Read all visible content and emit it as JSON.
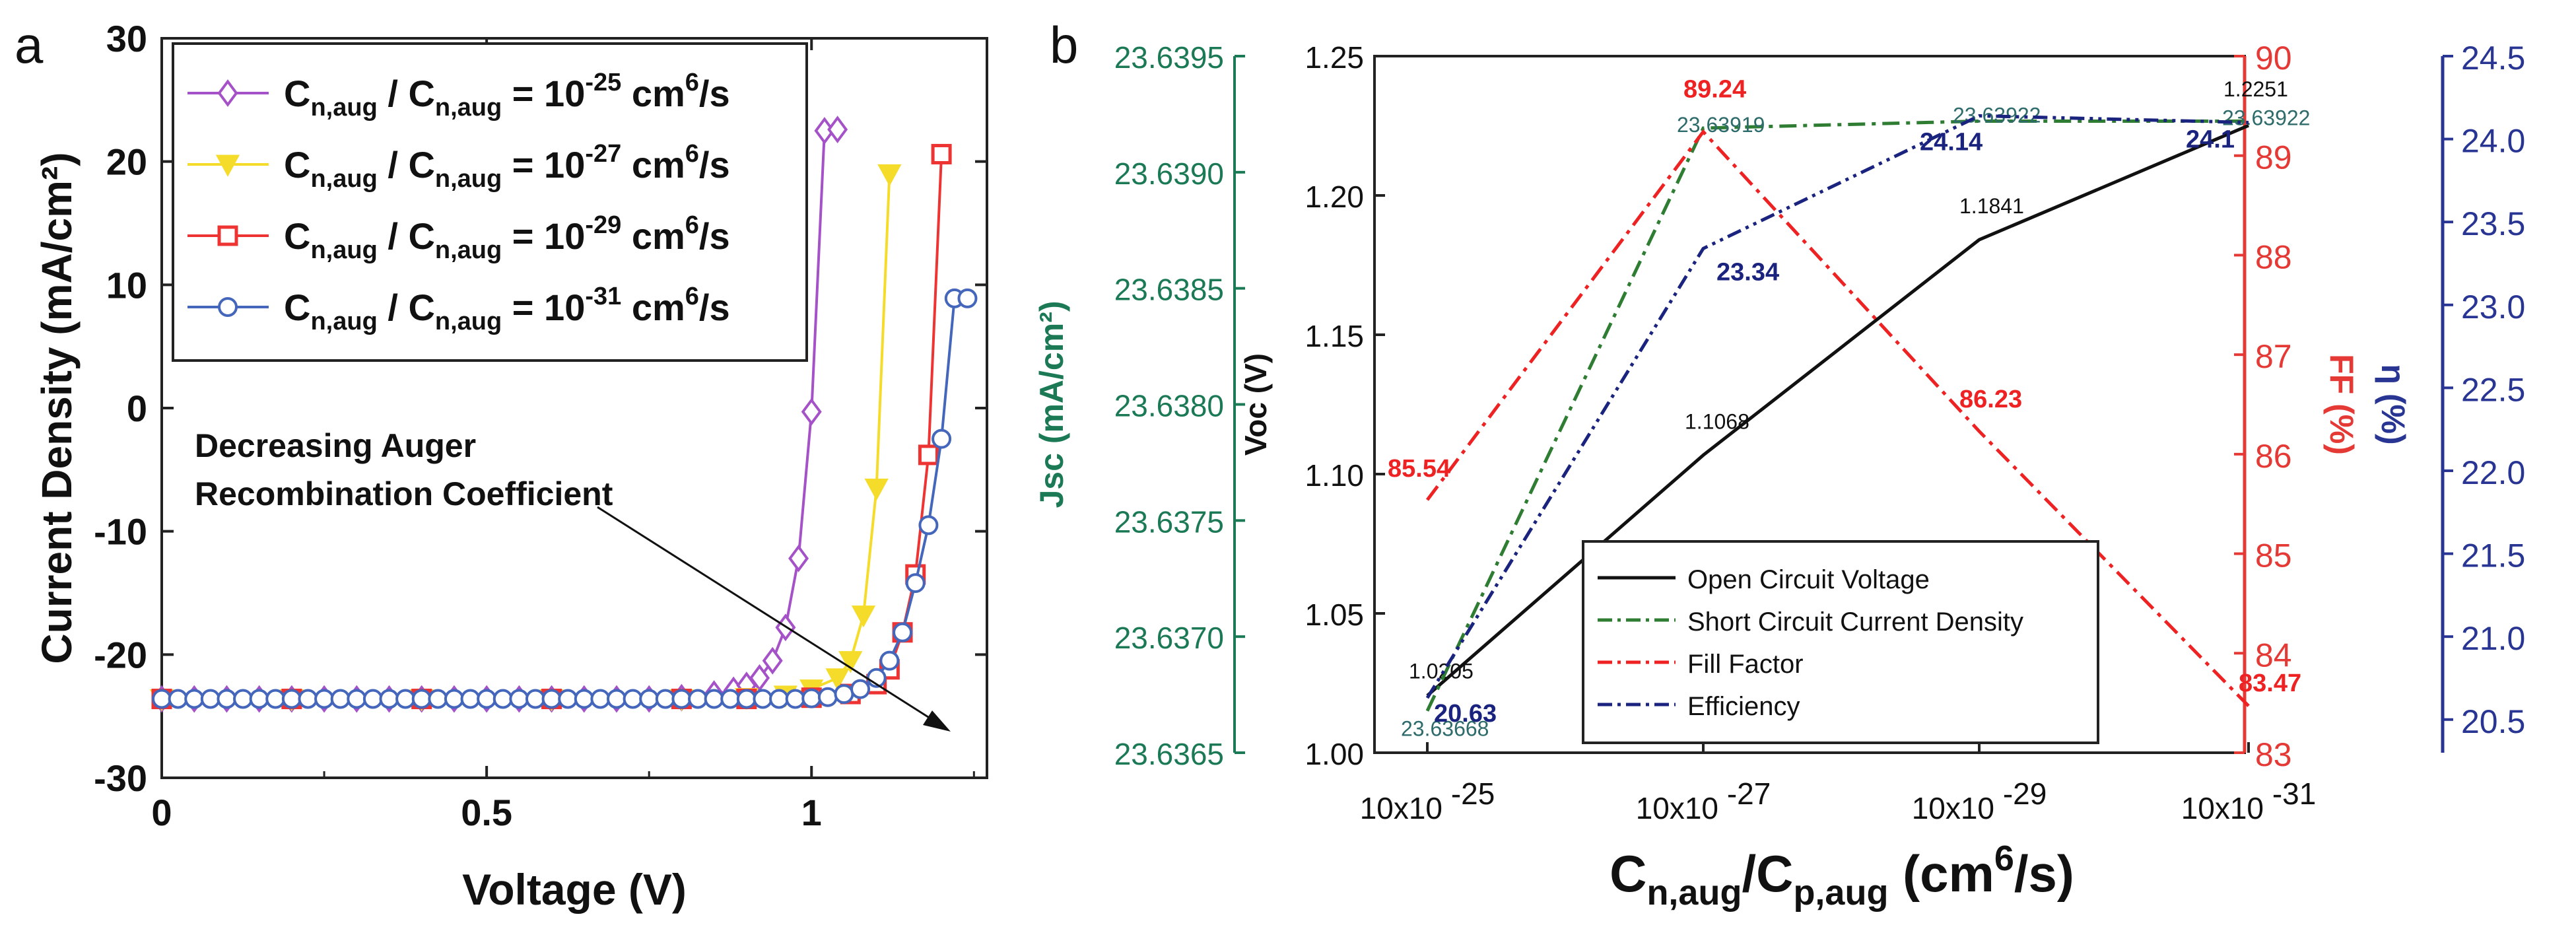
{
  "panel_labels": {
    "a": "a",
    "b": "b"
  },
  "colors": {
    "purple": "#a552c8",
    "yellow": "#f5dc2a",
    "red": "#ee3333",
    "blue": "#4466bb",
    "black": "#111111",
    "green": "#2e7d32",
    "red_dd": "#ee2222",
    "blue_dd": "#1a237e",
    "jsc_axis": "#1b7a55",
    "ff_axis": "#e53935",
    "eta_axis": "#283593"
  },
  "chart_data": [
    {
      "type": "line",
      "xlabel": "Voltage (V)",
      "ylabel": "Current Density (mA/cm²)",
      "xlim": [
        0,
        1.27
      ],
      "ylim": [
        -30,
        30
      ],
      "xticks": [
        0,
        0.5,
        1
      ],
      "xtick_labels": [
        "0",
        "0.5",
        "1"
      ],
      "yticks": [
        -30,
        -20,
        -10,
        0,
        10,
        20,
        30
      ],
      "ytick_labels": [
        "-30",
        "-20",
        "-10",
        "0",
        "10",
        "20",
        "30"
      ],
      "legend_position": "top-right",
      "legend_prefix": "C",
      "legend_sub": "n,aug",
      "legend_mid": " / C",
      "legend_unit": " cm",
      "legend_unit_sup": "6",
      "legend_tail": "/s",
      "legend_eq": " = 10",
      "annotation": {
        "line1": "Decreasing Auger",
        "line2": "Recombination Coefficient"
      },
      "series": [
        {
          "name": "Cn,aug / Cn,aug = 10^-25 cm^6/s",
          "exp": "-25",
          "color": "#a552c8",
          "marker": "diamond",
          "x": [
            0,
            0.05,
            0.1,
            0.15,
            0.2,
            0.25,
            0.3,
            0.35,
            0.4,
            0.45,
            0.5,
            0.55,
            0.6,
            0.65,
            0.7,
            0.75,
            0.8,
            0.85,
            0.88,
            0.9,
            0.92,
            0.94,
            0.96,
            0.98,
            1.0,
            1.02,
            1.04
          ],
          "y": [
            -23.6,
            -23.6,
            -23.6,
            -23.6,
            -23.6,
            -23.6,
            -23.6,
            -23.6,
            -23.6,
            -23.6,
            -23.6,
            -23.6,
            -23.6,
            -23.6,
            -23.6,
            -23.6,
            -23.5,
            -23.2,
            -22.9,
            -22.5,
            -21.9,
            -20.5,
            -17.8,
            -12.2,
            -0.3,
            22.5,
            22.6
          ]
        },
        {
          "name": "Cn,aug / Cn,aug = 10^-27 cm^6/s",
          "exp": "-27",
          "color": "#f5dc2a",
          "marker": "triangle",
          "x": [
            0,
            0.2,
            0.4,
            0.6,
            0.8,
            0.9,
            0.96,
            1.0,
            1.04,
            1.06,
            1.08,
            1.1,
            1.12
          ],
          "y": [
            -23.6,
            -23.6,
            -23.6,
            -23.6,
            -23.6,
            -23.5,
            -23.3,
            -22.8,
            -21.9,
            -20.5,
            -16.8,
            -6.5,
            19.0
          ]
        },
        {
          "name": "Cn,aug / Cn,aug = 10^-29 cm^6/s",
          "exp": "-29",
          "color": "#ee3333",
          "marker": "square",
          "x": [
            0,
            0.2,
            0.4,
            0.6,
            0.8,
            0.9,
            1.0,
            1.06,
            1.1,
            1.12,
            1.14,
            1.16,
            1.18,
            1.2
          ],
          "y": [
            -23.6,
            -23.6,
            -23.6,
            -23.6,
            -23.6,
            -23.6,
            -23.5,
            -23.2,
            -22.4,
            -21.2,
            -18.2,
            -13.5,
            -3.8,
            20.6
          ]
        },
        {
          "name": "Cn,aug / Cn,aug = 10^-31 cm^6/s",
          "exp": "-31",
          "color": "#4466bb",
          "marker": "circle",
          "x": [
            0,
            0.025,
            0.05,
            0.075,
            0.1,
            0.125,
            0.15,
            0.175,
            0.2,
            0.225,
            0.25,
            0.275,
            0.3,
            0.325,
            0.35,
            0.375,
            0.4,
            0.425,
            0.45,
            0.475,
            0.5,
            0.525,
            0.55,
            0.575,
            0.6,
            0.625,
            0.65,
            0.675,
            0.7,
            0.725,
            0.75,
            0.775,
            0.8,
            0.825,
            0.85,
            0.875,
            0.9,
            0.925,
            0.95,
            0.975,
            1.0,
            1.025,
            1.05,
            1.075,
            1.1,
            1.12,
            1.14,
            1.16,
            1.18,
            1.2,
            1.22,
            1.24
          ],
          "y": [
            -23.6,
            -23.6,
            -23.6,
            -23.6,
            -23.6,
            -23.6,
            -23.6,
            -23.6,
            -23.6,
            -23.6,
            -23.6,
            -23.6,
            -23.6,
            -23.6,
            -23.6,
            -23.6,
            -23.6,
            -23.6,
            -23.6,
            -23.6,
            -23.6,
            -23.6,
            -23.6,
            -23.6,
            -23.6,
            -23.6,
            -23.6,
            -23.6,
            -23.6,
            -23.6,
            -23.6,
            -23.6,
            -23.6,
            -23.6,
            -23.6,
            -23.6,
            -23.6,
            -23.6,
            -23.6,
            -23.6,
            -23.55,
            -23.45,
            -23.2,
            -22.8,
            -21.9,
            -20.5,
            -18.2,
            -14.2,
            -9.5,
            -2.5,
            8.9,
            8.9
          ]
        }
      ]
    },
    {
      "type": "line",
      "categories": [
        "10x10 -25",
        "10x10 -27",
        "10x10 -29",
        "10x10 -31"
      ],
      "category_base": "10x10",
      "category_exps": [
        "-25",
        "-27",
        "-29",
        "-31"
      ],
      "xlabel_main": "C",
      "xlabel_sub1": "n,aug",
      "xlabel_mid": "/C",
      "xlabel_sub2": "p,aug",
      "xlabel_unit": " (cm",
      "xlabel_sup": "6",
      "xlabel_end": "/s)",
      "axes": {
        "voc": {
          "label": "Voc (V)",
          "lim": [
            1.0,
            1.25
          ],
          "ticks": [
            "1.00",
            "1.05",
            "1.10",
            "1.15",
            "1.20",
            "1.25"
          ]
        },
        "jsc": {
          "label": "Jsc (mA/cm²)",
          "lim": [
            23.6365,
            23.6395
          ],
          "ticks": [
            "23.6365",
            "23.6370",
            "23.6375",
            "23.6380",
            "23.6385",
            "23.6390",
            "23.6395"
          ]
        },
        "ff": {
          "label": "FF (%)",
          "lim": [
            83,
            90
          ],
          "ticks": [
            "83",
            "84",
            "85",
            "86",
            "87",
            "88",
            "89",
            "90"
          ]
        },
        "eta": {
          "label": "η (%)",
          "lim": [
            20.3,
            24.5
          ],
          "ticks": [
            "20.5",
            "21.0",
            "21.5",
            "22.0",
            "22.5",
            "23.0",
            "23.5",
            "24.0",
            "24.5"
          ]
        }
      },
      "series": [
        {
          "name": "Open Circuit Voltage",
          "axis": "voc",
          "color": "#111111",
          "dash": "",
          "values": [
            1.0205,
            1.1068,
            1.1841,
            1.2251
          ],
          "labels": [
            "1.0205",
            "1.1068",
            "1.1841",
            "1.2251"
          ]
        },
        {
          "name": "Short Circuit Current Density",
          "axis": "jsc",
          "color": "#2e7d32",
          "dash": "26,10,6,10",
          "values": [
            23.63668,
            23.63919,
            23.63922,
            23.63922
          ],
          "labels": [
            "23.63668",
            "23.63919",
            "23.63922",
            "23.63922"
          ]
        },
        {
          "name": "Fill Factor",
          "axis": "ff",
          "color": "#ee2222",
          "dash": "26,10,6,10",
          "values": [
            85.54,
            89.24,
            86.23,
            83.47
          ],
          "labels": [
            "85.54",
            "89.24",
            "86.23",
            "83.47"
          ]
        },
        {
          "name": "Efficiency",
          "axis": "eta",
          "color": "#1a237e",
          "dash": "22,8,5,8,5,8",
          "values": [
            20.63,
            23.34,
            24.14,
            24.1
          ],
          "labels": [
            "20.63",
            "23.34",
            "24.14",
            "24.1"
          ]
        }
      ],
      "legend_position": "bottom-center"
    }
  ]
}
